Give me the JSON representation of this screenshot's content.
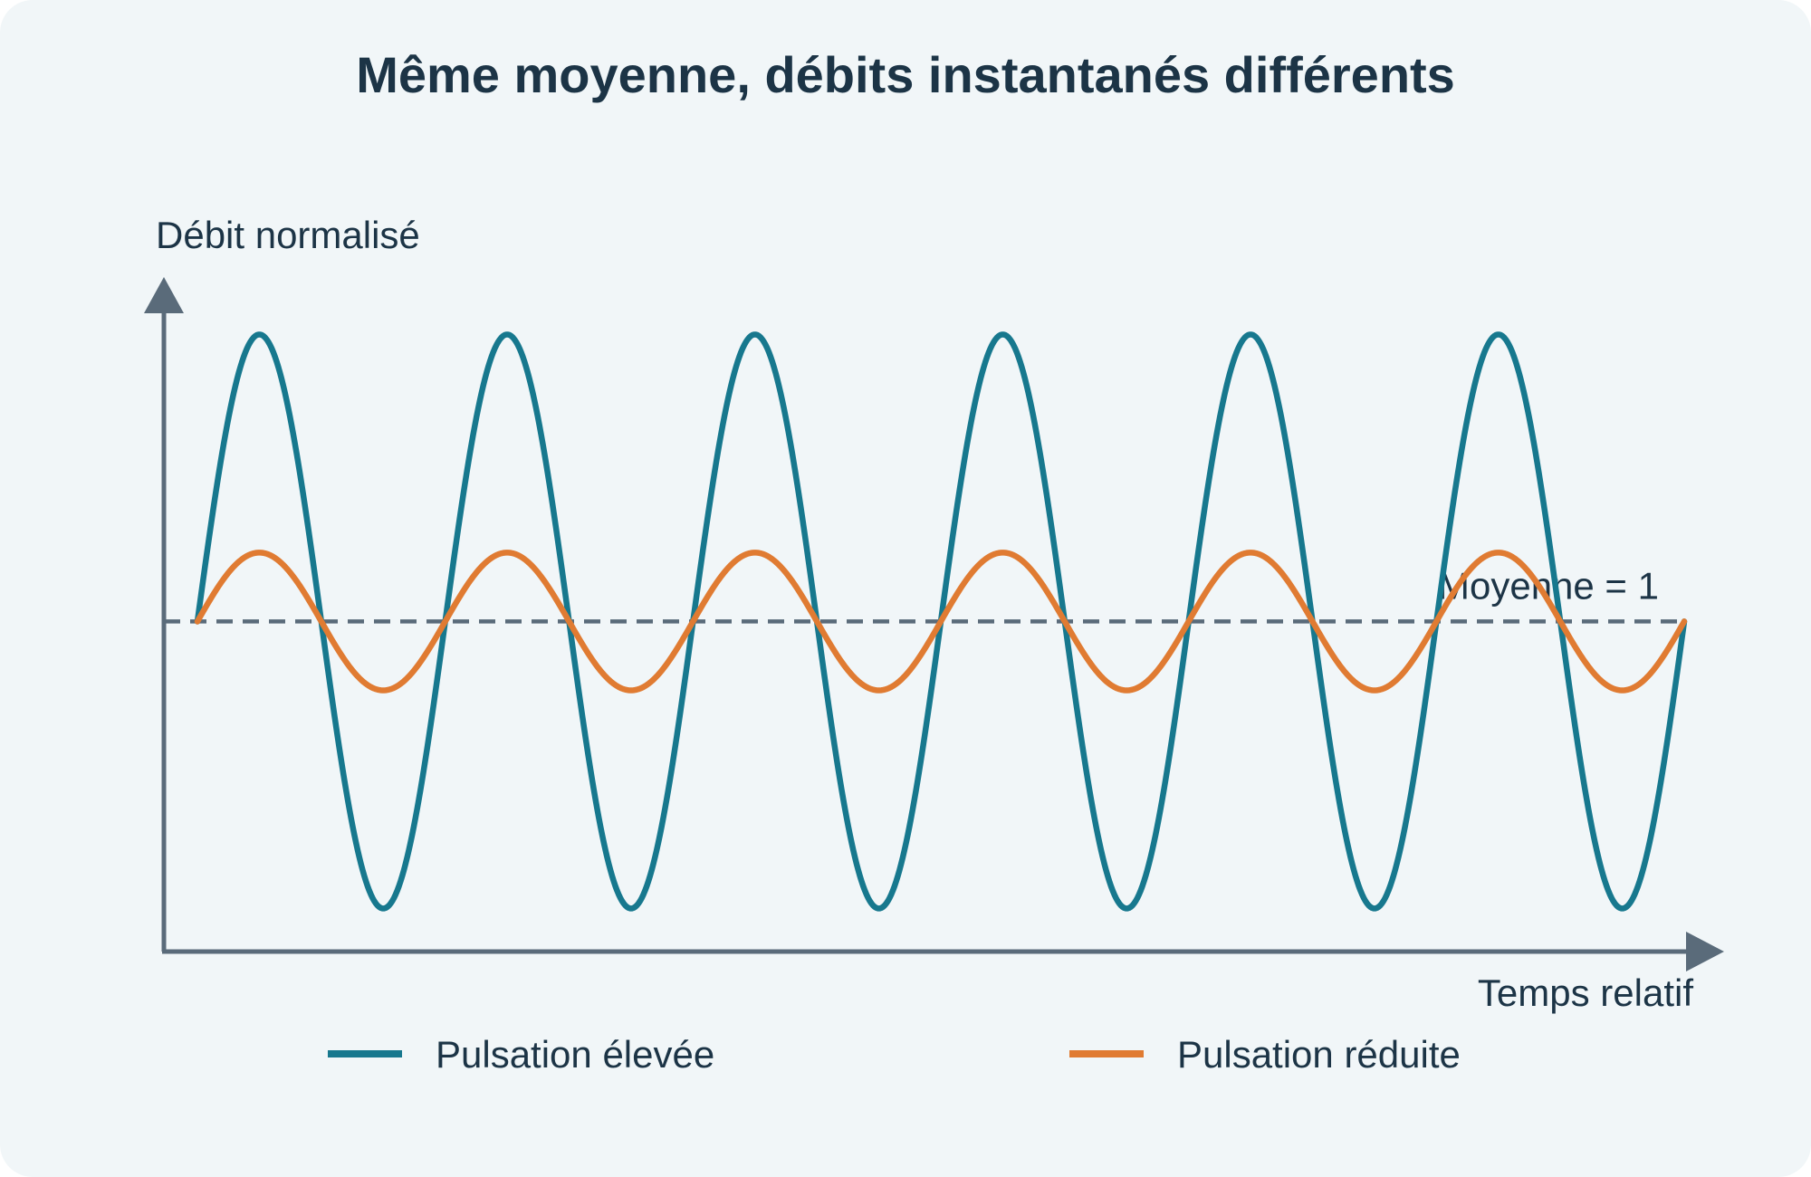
{
  "chart_data": {
    "type": "line",
    "title": "Même moyenne, débits instantanés différents",
    "ylabel": "Débit normalisé",
    "xlabel": "Temps relatif",
    "x_range": [
      0,
      6
    ],
    "ylim": [
      -0.15,
      2.2
    ],
    "grid": false,
    "legend_position": "bottom",
    "reference_line": {
      "label": "Moyenne = 1",
      "value": 1,
      "style": "dashed",
      "color": "#5a6b7a"
    },
    "series": [
      {
        "name": "Pulsation élevée",
        "color": "#17788e",
        "mean": 1,
        "amplitude": 1.0,
        "cycles": 6
      },
      {
        "name": "Pulsation réduite",
        "color": "#e07b32",
        "mean": 1,
        "amplitude": 0.24,
        "cycles": 6
      }
    ]
  },
  "colors": {
    "axis": "#5a6b7a",
    "text": "#1c3446",
    "background": "#f1f6f8"
  }
}
